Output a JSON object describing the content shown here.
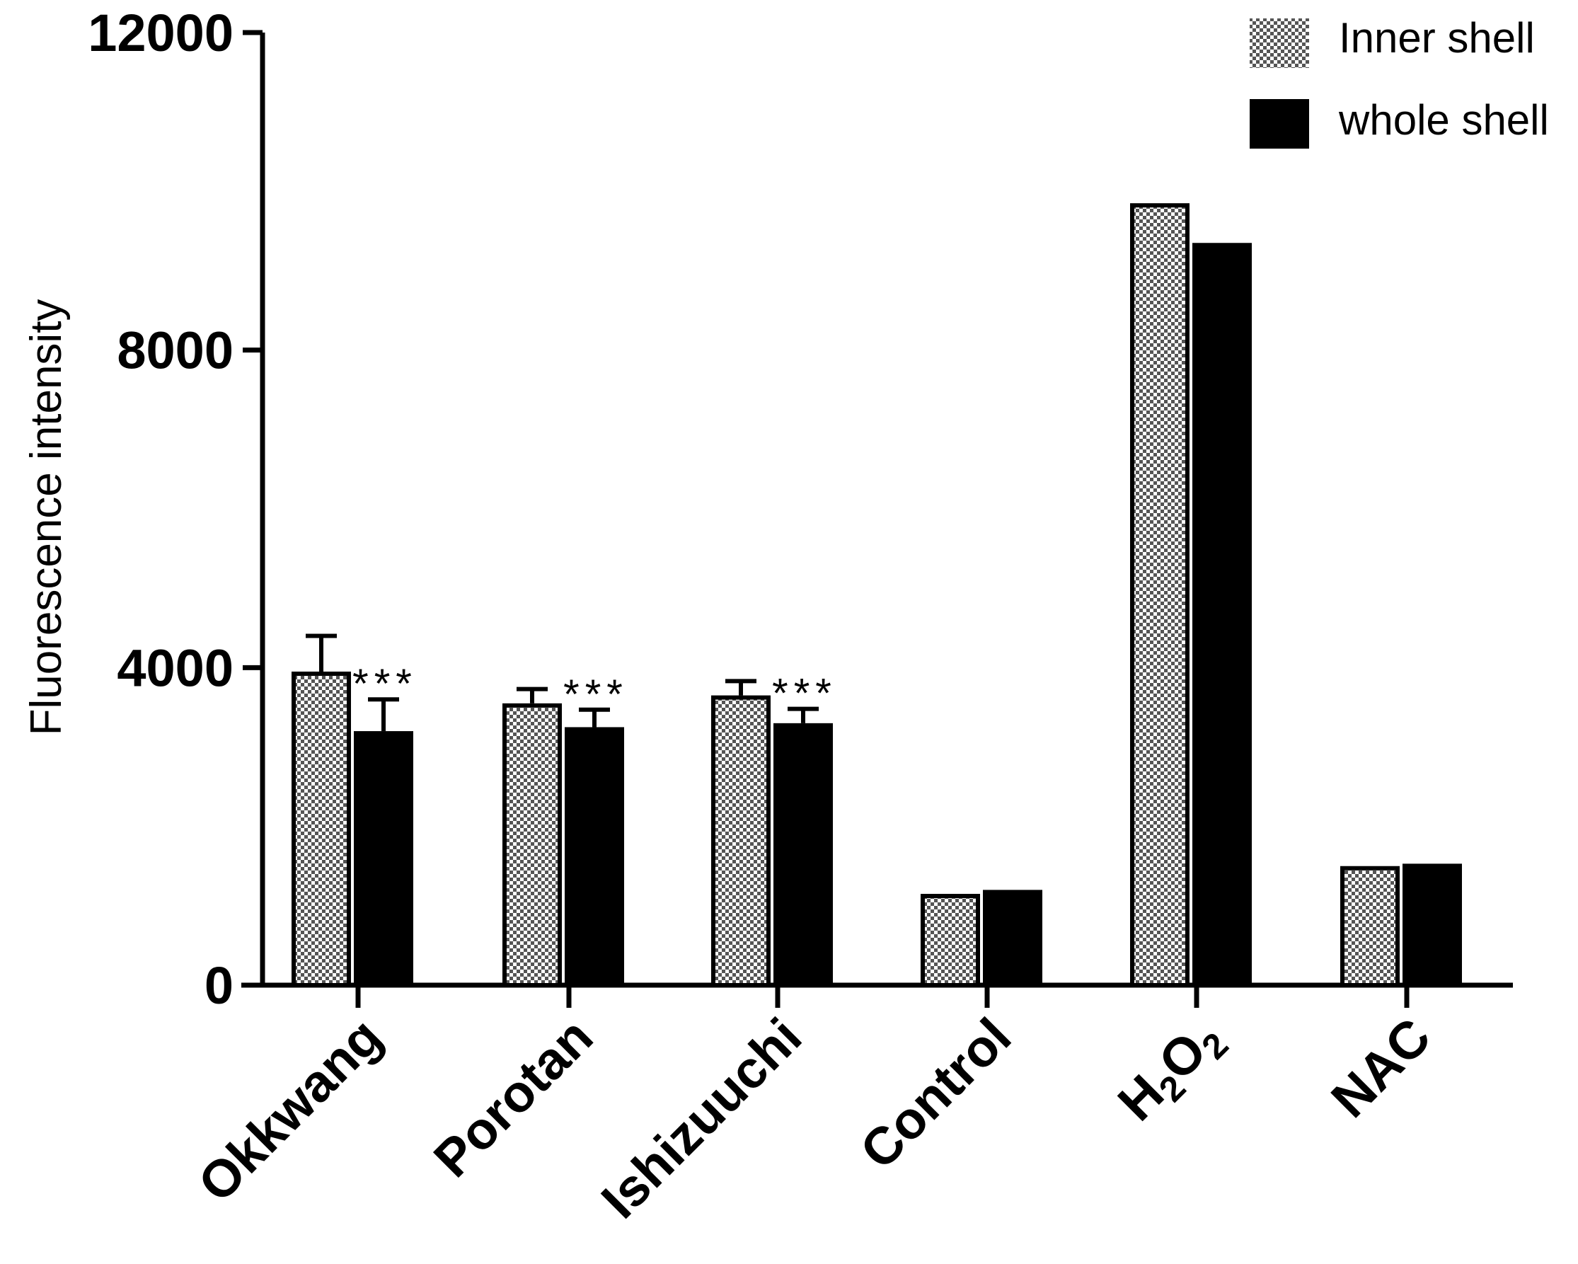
{
  "chart_data": {
    "type": "bar",
    "title": "",
    "xlabel": "",
    "ylabel": "Fluorescence intensity",
    "ylim": [
      0,
      12000
    ],
    "yticks": [
      0,
      4000,
      8000,
      12000
    ],
    "ytick_labels": [
      "0",
      "4000",
      "8000",
      "12000"
    ],
    "grid": false,
    "legend_position": "top-right",
    "categories": [
      "Okkwang",
      "Porotan",
      "Ishizuuchi",
      "Control",
      "H2O2",
      "NAC"
    ],
    "category_labels": [
      {
        "text": "Okkwang"
      },
      {
        "text": "Porotan"
      },
      {
        "text": "Ishizuuchi"
      },
      {
        "text": "Control"
      },
      {
        "base1": "H",
        "sub1": "2",
        "base2": "O",
        "sub2": "2"
      },
      {
        "text": "NAC"
      }
    ],
    "series": [
      {
        "name": "Inner shell",
        "pattern": "checkered",
        "fill_color": "#ffffff",
        "edge_color": "#000000",
        "values": [
          3950,
          3550,
          3650,
          1150,
          9850,
          1500
        ],
        "errors": [
          450,
          180,
          180,
          null,
          null,
          null
        ]
      },
      {
        "name": "whole shell",
        "pattern": "solid",
        "fill_color": "#000000",
        "edge_color": "#000000",
        "values": [
          3200,
          3250,
          3300,
          1200,
          9350,
          1530
        ],
        "errors": [
          400,
          220,
          180,
          null,
          null,
          null
        ]
      }
    ],
    "annotations": [
      {
        "category": "Okkwang",
        "series": "whole shell",
        "text": "***"
      },
      {
        "category": "Porotan",
        "series": "whole shell",
        "text": "***"
      },
      {
        "category": "Ishizuuchi",
        "series": "whole shell",
        "text": "***"
      }
    ]
  }
}
